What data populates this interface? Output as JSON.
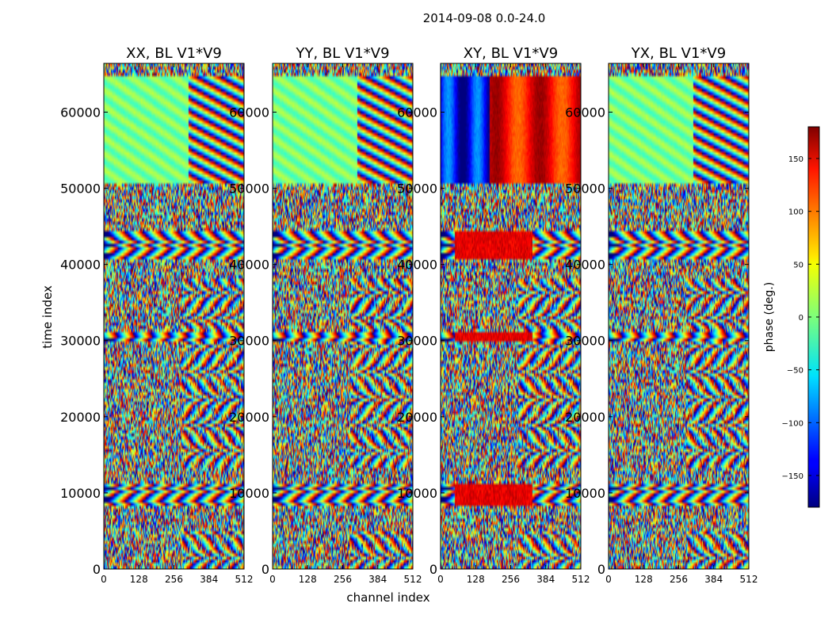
{
  "suptitle": "2014-09-08 0.0-24.0",
  "chart_data": [
    {
      "type": "heatmap",
      "title": "XX, BL V1*V9",
      "xlabel": "channel index",
      "ylabel": "time index",
      "xlim": [
        0,
        512
      ],
      "ylim": [
        0,
        66400
      ],
      "xticks": [
        0,
        128,
        256,
        384,
        512
      ],
      "yticks": [
        0,
        10000,
        20000,
        30000,
        40000,
        50000,
        60000
      ],
      "polarization": "XX"
    },
    {
      "type": "heatmap",
      "title": "YY, BL V1*V9",
      "xlabel": "channel index",
      "xlim": [
        0,
        512
      ],
      "ylim": [
        0,
        66400
      ],
      "xticks": [
        0,
        128,
        256,
        384,
        512
      ],
      "yticks": [
        0,
        10000,
        20000,
        30000,
        40000,
        50000,
        60000
      ],
      "polarization": "YY"
    },
    {
      "type": "heatmap",
      "title": "XY, BL V1*V9",
      "xlim": [
        0,
        512
      ],
      "ylim": [
        0,
        66400
      ],
      "xticks": [
        0,
        128,
        256,
        384,
        512
      ],
      "yticks": [
        0,
        10000,
        20000,
        30000,
        40000,
        50000,
        60000
      ],
      "polarization": "XY"
    },
    {
      "type": "heatmap",
      "title": "YX, BL V1*V9",
      "xlim": [
        0,
        512
      ],
      "ylim": [
        0,
        66400
      ],
      "xticks": [
        0,
        128,
        256,
        384,
        512
      ],
      "yticks": [
        0,
        10000,
        20000,
        30000,
        40000,
        50000,
        60000
      ],
      "polarization": "YX"
    }
  ],
  "shared": {
    "xlabel": "channel index",
    "ylabel": "time index"
  },
  "colorbar": {
    "label": "phase (deg.)",
    "colormap": "jet",
    "range": [
      -180,
      180
    ],
    "ticks": [
      -150,
      -100,
      -50,
      0,
      50,
      100,
      150
    ],
    "tick_labels": [
      "−150",
      "−100",
      "−50",
      "0",
      "50",
      "100",
      "150"
    ]
  }
}
